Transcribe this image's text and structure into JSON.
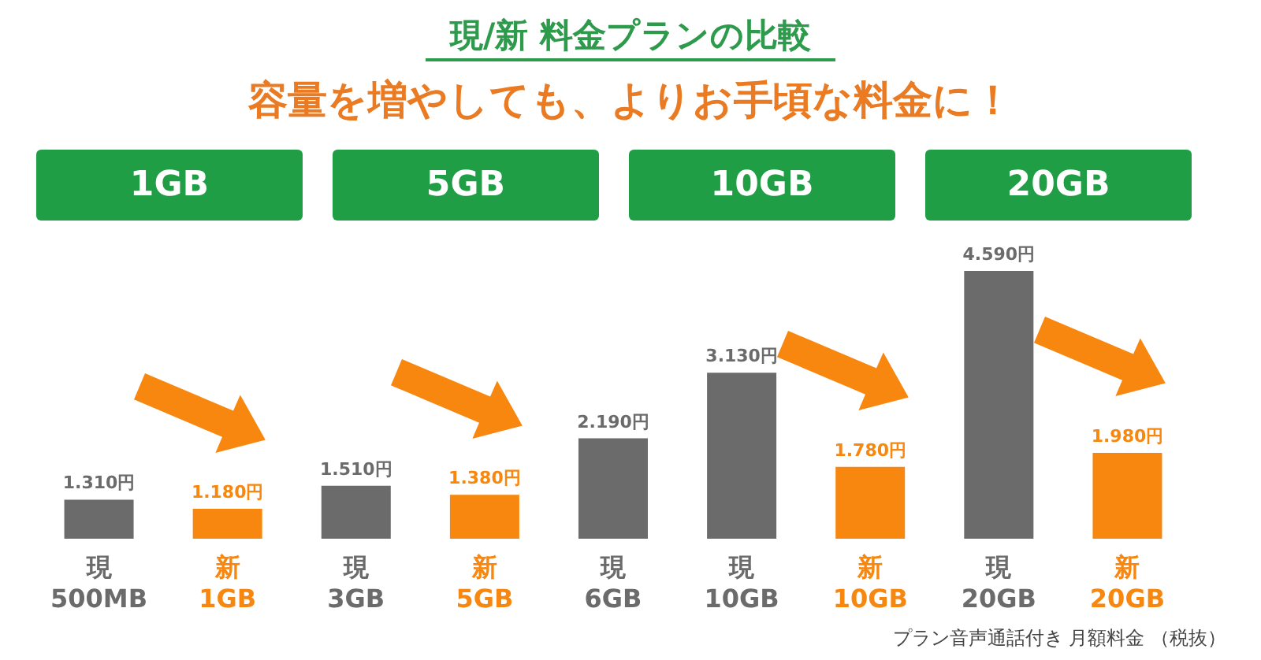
{
  "chart_data": {
    "type": "bar",
    "title": "現/新 料金プランの比較",
    "subtitle": "容量を増やしても、よりお手頃な料金に！",
    "categories": [
      "現\n500MB",
      "新\n1GB",
      "現\n3GB",
      "新\n5GB",
      "現\n6GB",
      "現\n10GB",
      "新\n10GB",
      "現\n20GB",
      "新\n20GB"
    ],
    "values": [
      1310,
      1180,
      1510,
      1380,
      2190,
      3130,
      1780,
      4590,
      1980
    ],
    "colors": [
      "#6b6b6b",
      "#f7870f",
      "#6b6b6b",
      "#f7870f",
      "#6b6b6b",
      "#6b6b6b",
      "#f7870f",
      "#6b6b6b",
      "#f7870f"
    ],
    "value_labels": [
      "1.310円",
      "1.180円",
      "1.510円",
      "1.380円",
      "2.190円",
      "3.130円",
      "1.780円",
      "4.590円",
      "1.980円"
    ],
    "ylim": [
      750,
      4590
    ],
    "tick_labels": "x",
    "annotations": [
      "1GB",
      "5GB",
      "10GB",
      "20GB",
      "プラン音声通話付き 月額料金 （税抜）"
    ]
  }
}
